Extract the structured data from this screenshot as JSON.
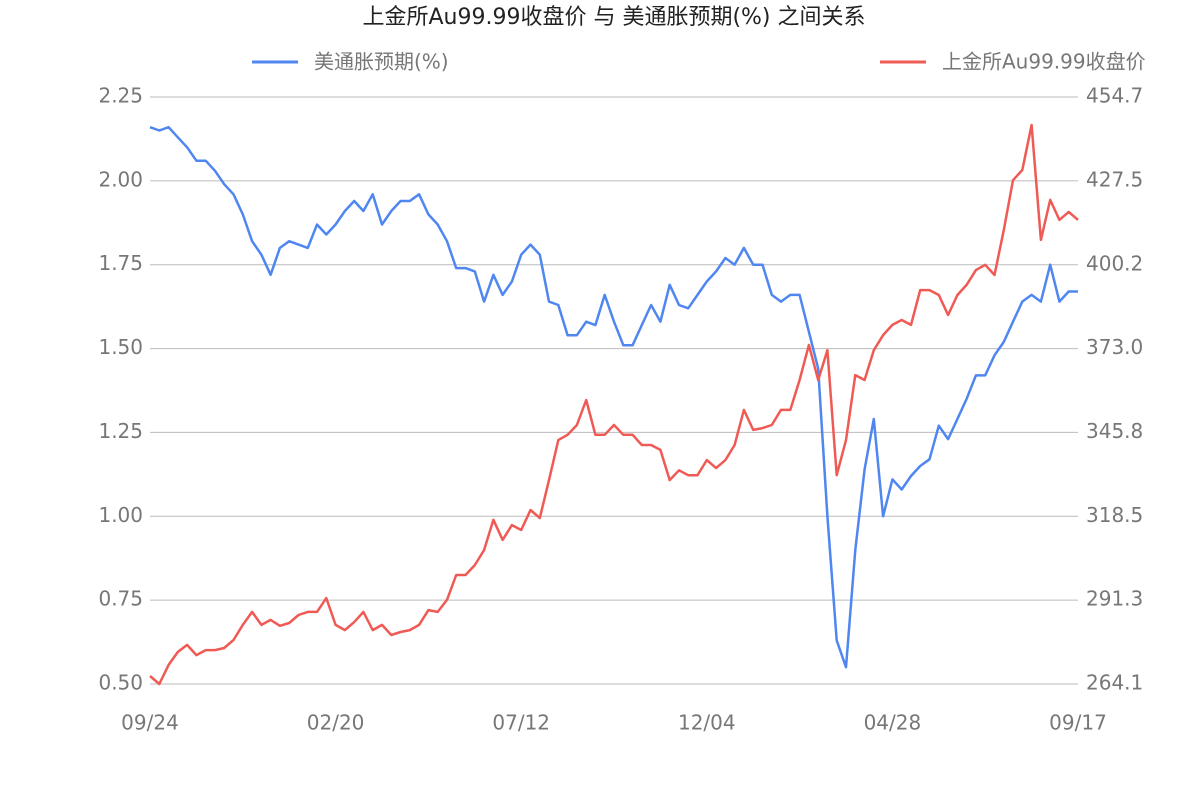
{
  "chart_data": {
    "type": "line",
    "title": "上金所Au99.99收盘价 与 美通胀预期(%) 之间关系",
    "categories": [
      "09/24",
      null,
      null,
      null,
      null,
      null,
      null,
      null,
      null,
      null,
      null,
      null,
      null,
      null,
      null,
      null,
      null,
      null,
      null,
      null,
      "02/20",
      null,
      null,
      null,
      null,
      null,
      null,
      null,
      null,
      null,
      null,
      null,
      null,
      null,
      null,
      null,
      null,
      null,
      null,
      null,
      "07/12",
      null,
      null,
      null,
      null,
      null,
      null,
      null,
      null,
      null,
      null,
      null,
      null,
      null,
      null,
      null,
      null,
      null,
      null,
      null,
      "12/04",
      null,
      null,
      null,
      null,
      null,
      null,
      null,
      null,
      null,
      null,
      null,
      null,
      null,
      null,
      null,
      null,
      null,
      null,
      null,
      "04/28",
      null,
      null,
      null,
      null,
      null,
      null,
      null,
      null,
      null,
      null,
      null,
      null,
      null,
      null,
      null,
      null,
      null,
      null,
      null,
      "09/17"
    ],
    "series": [
      {
        "name": "美通胀预期(%)",
        "color": "#4f86f0",
        "axis": "y",
        "values": [
          2.16,
          2.15,
          2.16,
          2.13,
          2.1,
          2.06,
          2.06,
          2.03,
          1.99,
          1.96,
          1.9,
          1.82,
          1.78,
          1.72,
          1.8,
          1.82,
          1.81,
          1.8,
          1.87,
          1.84,
          1.87,
          1.91,
          1.94,
          1.91,
          1.96,
          1.87,
          1.91,
          1.94,
          1.94,
          1.96,
          1.9,
          1.87,
          1.82,
          1.74,
          1.74,
          1.73,
          1.64,
          1.72,
          1.66,
          1.7,
          1.78,
          1.81,
          1.78,
          1.64,
          1.63,
          1.54,
          1.54,
          1.58,
          1.57,
          1.66,
          1.58,
          1.51,
          1.51,
          1.57,
          1.63,
          1.58,
          1.69,
          1.63,
          1.62,
          1.66,
          1.7,
          1.73,
          1.77,
          1.75,
          1.8,
          1.75,
          1.75,
          1.66,
          1.64,
          1.66,
          1.66,
          1.55,
          1.44,
          1.0,
          0.63,
          0.55,
          0.9,
          1.14,
          1.29,
          1.0,
          1.11,
          1.08,
          1.12,
          1.15,
          1.17,
          1.27,
          1.23,
          1.29,
          1.35,
          1.42,
          1.42,
          1.48,
          1.52,
          1.58,
          1.64,
          1.66,
          1.64,
          1.75,
          1.64,
          1.67,
          1.67
        ]
      },
      {
        "name": "上金所Au99.99收盘价",
        "color": "#f05a55",
        "axis": "y2",
        "values": [
          266.7,
          264.1,
          270.3,
          274.5,
          276.8,
          273.5,
          275.1,
          275.1,
          275.8,
          278.4,
          283.3,
          287.5,
          283.3,
          284.9,
          283.0,
          283.9,
          286.5,
          287.5,
          287.5,
          292.0,
          283.3,
          281.6,
          284.2,
          287.5,
          281.6,
          283.3,
          280.0,
          281.0,
          281.6,
          283.3,
          288.1,
          287.5,
          291.4,
          299.5,
          299.5,
          302.7,
          307.6,
          317.4,
          310.9,
          315.7,
          314.1,
          320.6,
          318.0,
          330.3,
          343.3,
          345.0,
          348.2,
          356.3,
          345.0,
          345.0,
          348.2,
          345.0,
          345.0,
          341.7,
          341.7,
          340.1,
          330.3,
          333.5,
          331.9,
          331.9,
          336.8,
          334.2,
          336.8,
          341.7,
          353.1,
          346.6,
          347.2,
          348.2,
          353.1,
          353.1,
          362.8,
          374.2,
          362.8,
          372.5,
          331.9,
          343.3,
          364.4,
          362.8,
          372.5,
          377.4,
          380.7,
          382.3,
          380.7,
          392.0,
          392.0,
          390.4,
          383.9,
          390.4,
          393.7,
          398.5,
          400.2,
          396.9,
          411.5,
          427.7,
          431.0,
          445.6,
          408.3,
          421.3,
          414.8,
          417.4,
          414.8
        ]
      }
    ],
    "ylim": [
      0.5,
      2.25
    ],
    "yticks": [
      {
        "value": 0.5,
        "label": "0.50"
      },
      {
        "value": 0.75,
        "label": "0.75"
      },
      {
        "value": 1,
        "label": "1.00"
      },
      {
        "value": 1.25,
        "label": "1.25"
      },
      {
        "value": 1.5,
        "label": "1.50"
      },
      {
        "value": 1.75,
        "label": "1.75"
      },
      {
        "value": 2,
        "label": "2.00"
      },
      {
        "value": 2.25,
        "label": "2.25"
      }
    ],
    "y2lim": [
      264.1,
      454.7
    ],
    "y2ticks": [
      264.1,
      291.3,
      318.5,
      345.8,
      {
        "value": 373,
        "label": "373.0"
      },
      400.2,
      427.5,
      454.7
    ],
    "grid": true
  }
}
